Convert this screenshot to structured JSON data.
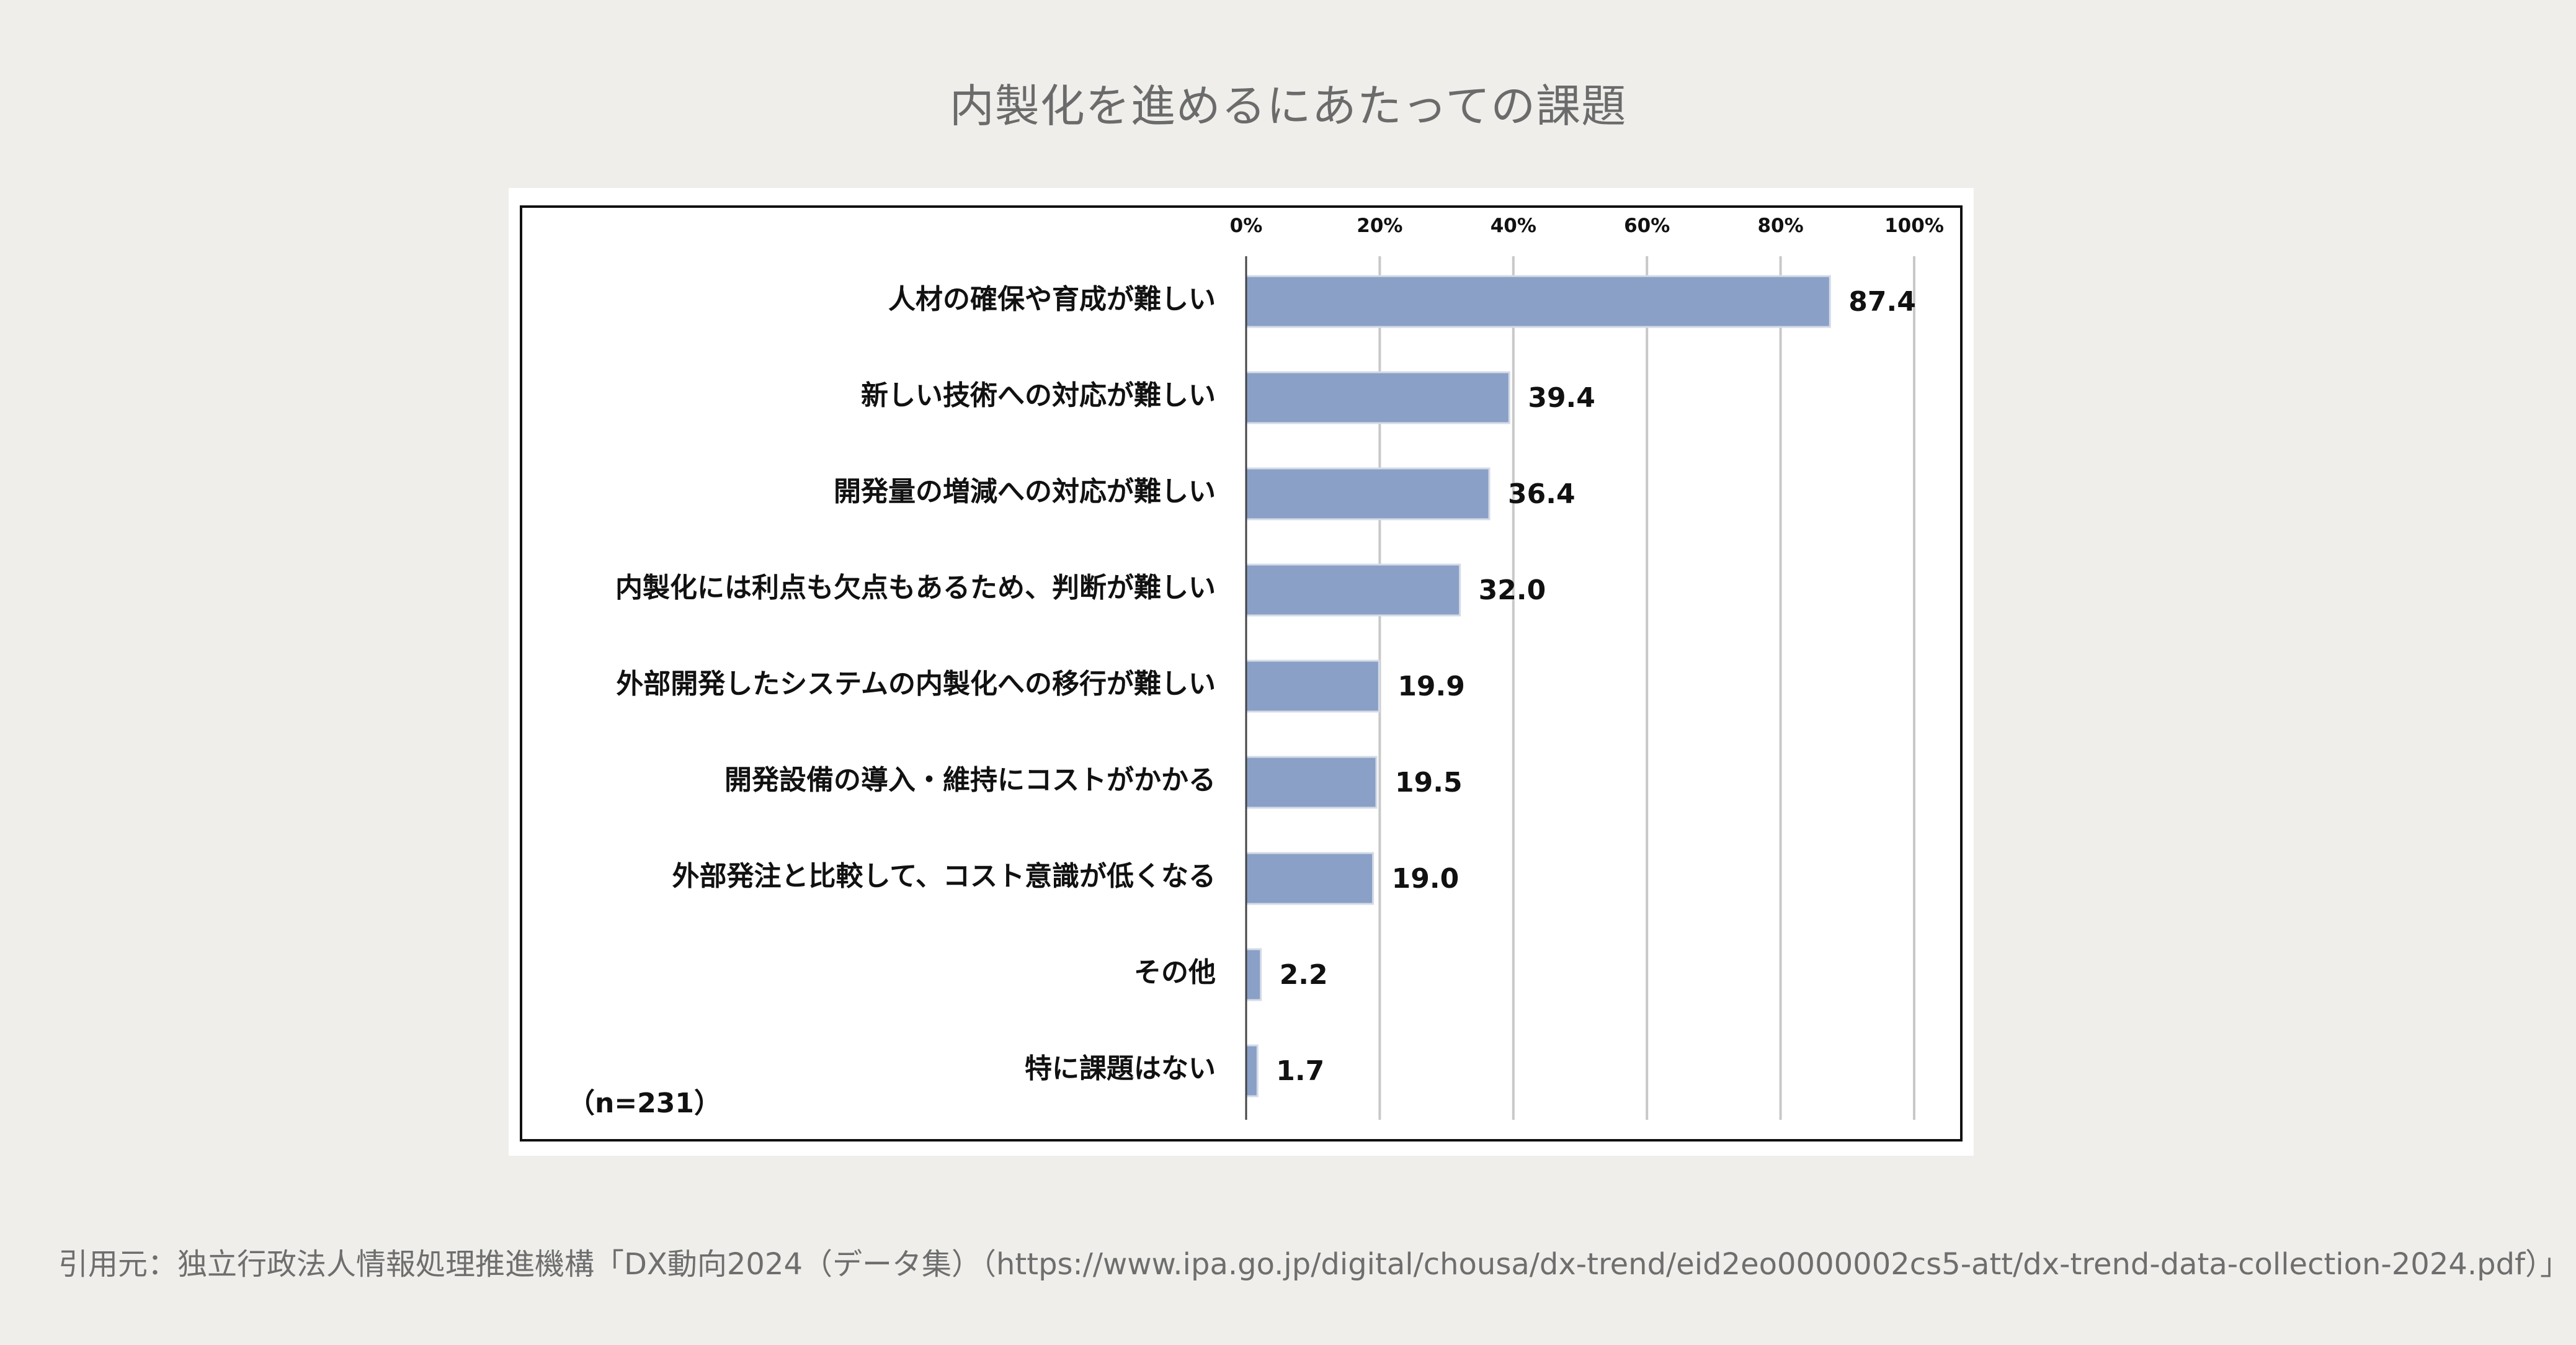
{
  "page": {
    "title": "内製化を進めるにあたっての課題",
    "source": "引用元：独立行政法人情報処理推進機構「DX動向2024（データ集）（https://www.ipa.go.jp/digital/chousa/dx-trend/eid2eo0000002cs5-att/dx-trend-data-collection-2024.pdf）」"
  },
  "chart_data": {
    "type": "bar",
    "orientation": "horizontal",
    "title": "",
    "xlim": [
      0,
      100
    ],
    "ticks": [
      "0%",
      "20%",
      "40%",
      "60%",
      "80%",
      "100%"
    ],
    "tick_values": [
      0,
      20,
      40,
      60,
      80,
      100
    ],
    "tick_position": "top",
    "grid": true,
    "bar_color": "#8aa0c6",
    "note": "（n=231）",
    "categories": [
      "人材の確保や育成が難しい",
      "新しい技術への対応が難しい",
      "開発量の増減への対応が難しい",
      "内製化には利点も欠点もあるため、判断が難しい",
      "外部開発したシステムの内製化への移行が難しい",
      "開発設備の導入・維持にコストがかかる",
      "外部発注と比較して、コスト意識が低くなる",
      "その他",
      "特に課題はない"
    ],
    "values": [
      87.4,
      39.4,
      36.4,
      32.0,
      19.9,
      19.5,
      19.0,
      2.2,
      1.7
    ],
    "value_labels": [
      "87.4",
      "39.4",
      "36.4",
      "32.0",
      "19.9",
      "19.5",
      "19.0",
      "2.2",
      "1.7"
    ]
  }
}
